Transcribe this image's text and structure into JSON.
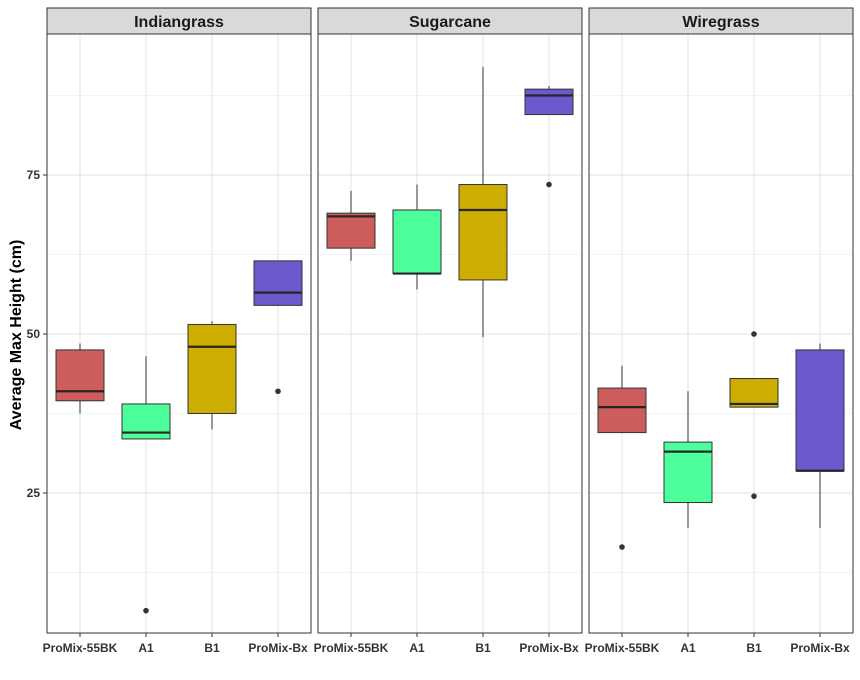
{
  "chart_data": {
    "type": "boxplot",
    "ylabel": "Average Max Height (cm)",
    "xlabel": "",
    "ylim": [
      0,
      95
    ],
    "y_ticks": [
      25,
      50,
      75
    ],
    "categories": [
      "ProMix-55BK",
      "A1",
      "B1",
      "ProMix-Bx"
    ],
    "colors": {
      "ProMix-55BK": "#cd5c5c",
      "A1": "#4dff9a",
      "B1": "#cdad00",
      "ProMix-Bx": "#6a5acd"
    },
    "grid": true,
    "legend": "none",
    "panels": [
      {
        "title": "Indiangrass",
        "boxes": [
          {
            "category": "ProMix-55BK",
            "min": 37.5,
            "q1": 39.5,
            "median": 41.0,
            "q3": 47.5,
            "max": 48.5,
            "outliers": []
          },
          {
            "category": "A1",
            "min": 33.5,
            "q1": 33.5,
            "median": 34.5,
            "q3": 39.0,
            "max": 46.5,
            "outliers": [
              6.5
            ]
          },
          {
            "category": "B1",
            "min": 35.0,
            "q1": 37.5,
            "median": 48.0,
            "q3": 51.5,
            "max": 52.0,
            "outliers": []
          },
          {
            "category": "ProMix-Bx",
            "min": 54.5,
            "q1": 54.5,
            "median": 56.5,
            "q3": 61.5,
            "max": 61.5,
            "outliers": [
              41.0
            ]
          }
        ]
      },
      {
        "title": "Sugarcane",
        "boxes": [
          {
            "category": "ProMix-55BK",
            "min": 61.5,
            "q1": 63.5,
            "median": 68.5,
            "q3": 69.0,
            "max": 72.5,
            "outliers": []
          },
          {
            "category": "A1",
            "min": 57.0,
            "q1": 59.5,
            "median": 59.5,
            "q3": 69.5,
            "max": 73.5,
            "outliers": []
          },
          {
            "category": "B1",
            "min": 49.5,
            "q1": 58.5,
            "median": 69.5,
            "q3": 73.5,
            "max": 92.0,
            "outliers": []
          },
          {
            "category": "ProMix-Bx",
            "min": 84.5,
            "q1": 84.5,
            "median": 87.5,
            "q3": 88.5,
            "max": 89.0,
            "outliers": [
              73.5
            ]
          }
        ]
      },
      {
        "title": "Wiregrass",
        "boxes": [
          {
            "category": "ProMix-55BK",
            "min": 34.5,
            "q1": 34.5,
            "median": 38.5,
            "q3": 41.5,
            "max": 45.0,
            "outliers": [
              16.5
            ]
          },
          {
            "category": "A1",
            "min": 19.5,
            "q1": 23.5,
            "median": 31.5,
            "q3": 33.0,
            "max": 41.0,
            "outliers": []
          },
          {
            "category": "B1",
            "min": 38.5,
            "q1": 38.5,
            "median": 39.0,
            "q3": 43.0,
            "max": 43.0,
            "outliers": [
              24.5,
              50.0
            ]
          },
          {
            "category": "ProMix-Bx",
            "min": 19.5,
            "q1": 28.5,
            "median": 28.5,
            "q3": 47.5,
            "max": 48.5,
            "outliers": []
          }
        ]
      }
    ]
  }
}
